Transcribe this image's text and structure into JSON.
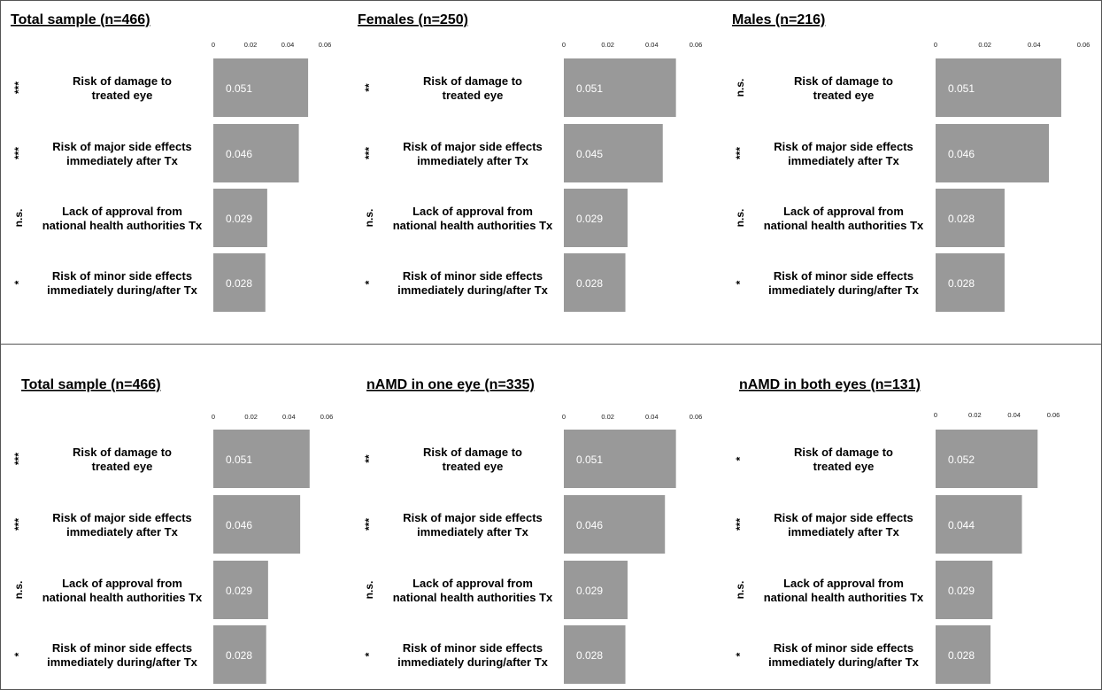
{
  "chart_data": [
    {
      "type": "bar",
      "title": "Total sample (n=466)",
      "x_ticks": [
        "0",
        "0.02",
        "0.04",
        "0.06"
      ],
      "xlim": [
        0,
        0.06
      ],
      "categories": [
        "Risk of damage to\ntreated eye",
        "Risk of major side effects\nimmediately after Tx",
        "Lack of approval from\nnational health authorities Tx",
        "Risk of minor side effects\nimmediately during/after Tx"
      ],
      "values": [
        0.051,
        0.046,
        0.029,
        0.028
      ],
      "value_labels": [
        "0.051",
        "0.046",
        "0.029",
        "0.028"
      ],
      "significance": [
        "***",
        "***",
        "n.s.",
        "*"
      ]
    },
    {
      "type": "bar",
      "title": "Females (n=250)",
      "x_ticks": [
        "0",
        "0.02",
        "0.04",
        "0.06"
      ],
      "xlim": [
        0,
        0.06
      ],
      "categories": [
        "Risk of damage to\ntreated eye",
        "Risk of major side effects\nimmediately after Tx",
        "Lack of approval from\nnational health authorities Tx",
        "Risk of minor side effects\nimmediately during/after Tx"
      ],
      "values": [
        0.051,
        0.045,
        0.029,
        0.028
      ],
      "value_labels": [
        "0.051",
        "0.045",
        "0.029",
        "0.028"
      ],
      "significance": [
        "**",
        "***",
        "n.s.",
        "*"
      ]
    },
    {
      "type": "bar",
      "title": "Males (n=216)",
      "x_ticks": [
        "0",
        "0.02",
        "0.04",
        "0.06"
      ],
      "xlim": [
        0,
        0.06
      ],
      "categories": [
        "Risk of damage to\ntreated eye",
        "Risk of major side effects\nimmediately after Tx",
        "Lack of approval from\nnational health authorities Tx",
        "Risk of minor side effects\nimmediately during/after Tx"
      ],
      "values": [
        0.051,
        0.046,
        0.028,
        0.028
      ],
      "value_labels": [
        "0.051",
        "0.046",
        "0.028",
        "0.028"
      ],
      "significance": [
        "n.s.",
        "***",
        "n.s.",
        "*"
      ]
    },
    {
      "type": "bar",
      "title": "Total sample (n=466)",
      "x_ticks": [
        "0",
        "0.02",
        "0.04",
        "0.06"
      ],
      "xlim": [
        0,
        0.06
      ],
      "categories": [
        "Risk of damage to\ntreated eye",
        "Risk of major side effects\nimmediately after Tx",
        "Lack of approval from\nnational health authorities Tx",
        "Risk of minor side effects\nimmediately during/after Tx"
      ],
      "values": [
        0.051,
        0.046,
        0.029,
        0.028
      ],
      "value_labels": [
        "0.051",
        "0.046",
        "0.029",
        "0.028"
      ],
      "significance": [
        "***",
        "***",
        "n.s.",
        "*"
      ]
    },
    {
      "type": "bar",
      "title": "nAMD in one eye (n=335)",
      "x_ticks": [
        "0",
        "0.02",
        "0.04",
        "0.06"
      ],
      "xlim": [
        0,
        0.06
      ],
      "categories": [
        "Risk of damage to\ntreated eye",
        "Risk of major side effects\nimmediately after Tx",
        "Lack of approval from\nnational health authorities Tx",
        "Risk of minor side effects\nimmediately during/after Tx"
      ],
      "values": [
        0.051,
        0.046,
        0.029,
        0.028
      ],
      "value_labels": [
        "0.051",
        "0.046",
        "0.029",
        "0.028"
      ],
      "significance": [
        "**",
        "***",
        "n.s.",
        "*"
      ]
    },
    {
      "type": "bar",
      "title": "nAMD in both eyes (n=131)",
      "x_ticks": [
        "0",
        "0.02",
        "0.04",
        "0.06"
      ],
      "xlim": [
        0,
        0.06
      ],
      "categories": [
        "Risk of damage to\ntreated eye",
        "Risk of major side effects\nimmediately after Tx",
        "Lack of approval from\nnational health authorities Tx",
        "Risk of minor side effects\nimmediately during/after Tx"
      ],
      "values": [
        0.052,
        0.044,
        0.029,
        0.028
      ],
      "value_labels": [
        "0.052",
        "0.044",
        "0.029",
        "0.028"
      ],
      "significance": [
        "*",
        "***",
        "n.s.",
        "*"
      ]
    }
  ],
  "colors": {
    "bar": "#999999",
    "value_text": "#ffffff",
    "frame": "#555555"
  }
}
